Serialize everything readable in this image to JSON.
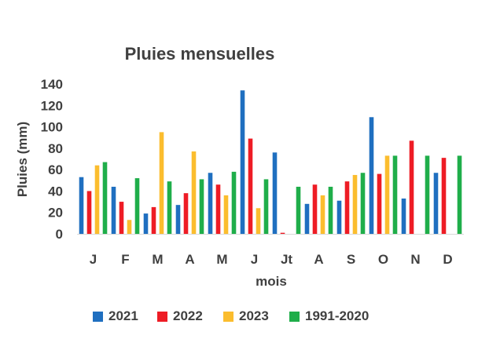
{
  "chart_data": {
    "type": "bar",
    "title": "Pluies mensuelles",
    "xlabel": "mois",
    "ylabel": "Pluies (mm)",
    "ylim": [
      0,
      140
    ],
    "yticks": [
      0,
      20,
      40,
      60,
      80,
      100,
      120,
      140
    ],
    "grid": false,
    "legend_position": "bottom",
    "categories": [
      "J",
      "F",
      "M",
      "A",
      "M",
      "J",
      "Jt",
      "A",
      "S",
      "O",
      "N",
      "D"
    ],
    "series": [
      {
        "name": "2021",
        "color": "#1f6fc0",
        "values": [
          53,
          44,
          19,
          27,
          57,
          134,
          76,
          28,
          31,
          109,
          33,
          57
        ]
      },
      {
        "name": "2022",
        "color": "#ee1c25",
        "values": [
          40,
          30,
          25,
          38,
          46,
          89,
          1,
          46,
          49,
          56,
          87,
          71
        ]
      },
      {
        "name": "2023",
        "color": "#fbbd2e",
        "values": [
          64,
          13,
          95,
          77,
          36,
          24,
          null,
          36,
          55,
          73,
          null,
          null
        ]
      },
      {
        "name": "1991-2020",
        "color": "#1fae4a",
        "values": [
          67,
          52,
          49,
          51,
          58,
          51,
          44,
          44,
          57,
          73,
          73,
          73
        ]
      }
    ]
  }
}
